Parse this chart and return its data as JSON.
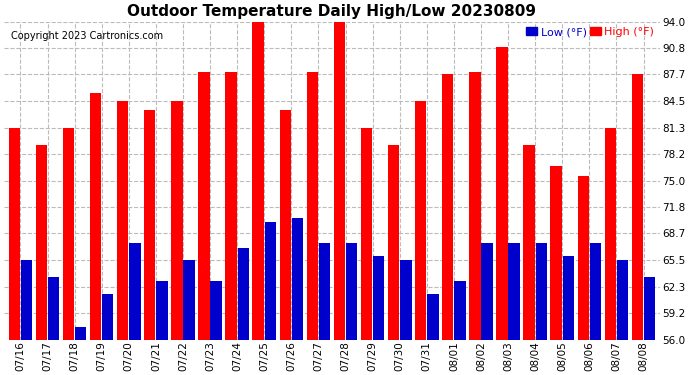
{
  "title": "Outdoor Temperature Daily High/Low 20230809",
  "copyright": "Copyright 2023 Cartronics.com",
  "legend_low": "Low",
  "legend_high": "High",
  "legend_unit": "(°F)",
  "dates": [
    "07/16",
    "07/17",
    "07/18",
    "07/19",
    "07/20",
    "07/21",
    "07/22",
    "07/23",
    "07/24",
    "07/25",
    "07/26",
    "07/27",
    "07/28",
    "07/29",
    "07/30",
    "07/31",
    "08/01",
    "08/02",
    "08/03",
    "08/04",
    "08/05",
    "08/06",
    "08/07",
    "08/08"
  ],
  "highs": [
    81.3,
    79.3,
    81.3,
    85.5,
    84.5,
    83.5,
    84.5,
    88.0,
    88.0,
    94.0,
    83.5,
    88.0,
    94.0,
    81.3,
    79.3,
    84.5,
    87.7,
    88.0,
    91.0,
    79.3,
    76.8,
    75.5,
    81.3,
    87.7
  ],
  "lows": [
    65.5,
    63.5,
    57.5,
    61.5,
    67.5,
    63.0,
    65.5,
    63.0,
    67.0,
    70.0,
    70.5,
    67.5,
    67.5,
    66.0,
    65.5,
    61.5,
    63.0,
    67.5,
    67.5,
    67.5,
    66.0,
    67.5,
    65.5,
    63.5
  ],
  "bar_color_high": "#ff0000",
  "bar_color_low": "#0000cc",
  "background_color": "#ffffff",
  "grid_color": "#bbbbbb",
  "ylim_min": 56.0,
  "ylim_max": 94.0,
  "yticks": [
    56.0,
    59.2,
    62.3,
    65.5,
    68.7,
    71.8,
    75.0,
    78.2,
    81.3,
    84.5,
    87.7,
    90.8,
    94.0
  ],
  "ytick_labels": [
    "56.0",
    "59.2",
    "62.3",
    "65.5",
    "68.7",
    "71.8",
    "75.0",
    "78.2",
    "81.3",
    "84.5",
    "87.7",
    "90.8",
    "94.0"
  ],
  "title_fontsize": 11,
  "copyright_fontsize": 7,
  "legend_fontsize": 8,
  "tick_fontsize": 7.5
}
